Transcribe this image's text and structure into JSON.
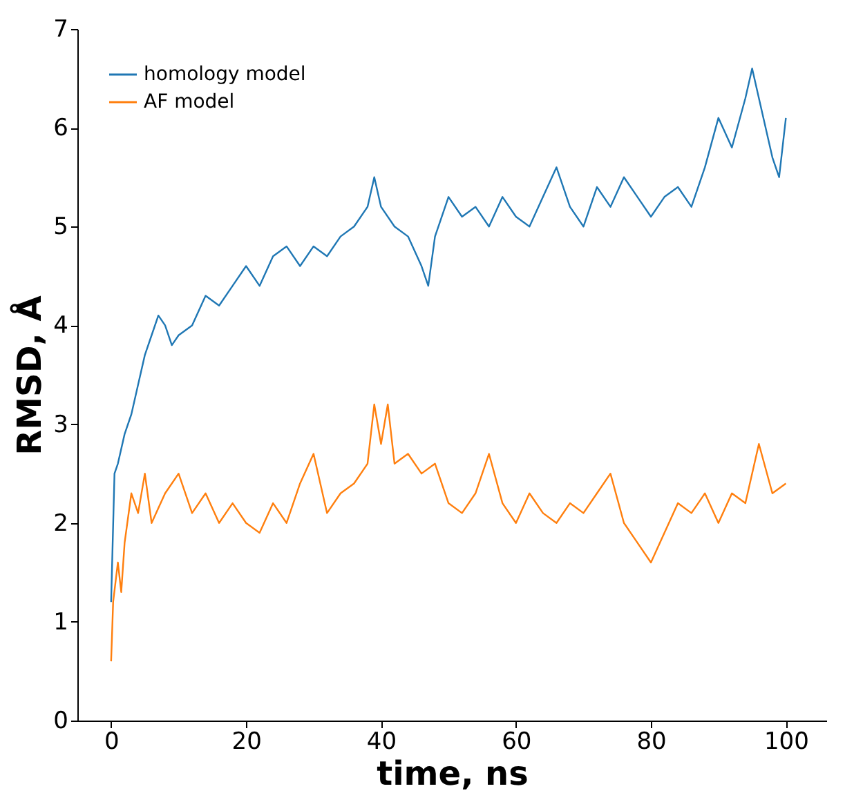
{
  "chart_data": {
    "type": "line",
    "xlabel": "time, ns",
    "ylabel": "RMSD, Å",
    "xlim": [
      -5,
      106
    ],
    "xticks": [
      0,
      20,
      40,
      60,
      80,
      100
    ],
    "ylim": [
      0,
      7
    ],
    "yticks": [
      0,
      1,
      2,
      3,
      4,
      5,
      6,
      7
    ],
    "grid": false,
    "legend": "top left",
    "line_style": "solid",
    "marker": "none",
    "series": [
      {
        "name": "homology model",
        "color": "#1f77b4",
        "x": [
          0,
          0.5,
          1,
          2,
          3,
          4,
          5,
          6,
          7,
          8,
          9,
          10,
          12,
          14,
          16,
          18,
          20,
          22,
          24,
          26,
          28,
          30,
          32,
          34,
          36,
          38,
          39,
          40,
          42,
          44,
          46,
          47,
          48,
          50,
          52,
          54,
          56,
          58,
          60,
          62,
          64,
          66,
          68,
          70,
          72,
          74,
          76,
          78,
          80,
          82,
          84,
          86,
          88,
          90,
          92,
          94,
          95,
          96,
          98,
          99,
          100
        ],
        "values": [
          1.2,
          2.5,
          2.6,
          2.9,
          3.1,
          3.4,
          3.7,
          3.9,
          4.1,
          4.0,
          3.8,
          3.9,
          4.0,
          4.3,
          4.2,
          4.4,
          4.6,
          4.4,
          4.7,
          4.8,
          4.6,
          4.8,
          4.7,
          4.9,
          5.0,
          5.2,
          5.5,
          5.2,
          5.0,
          4.9,
          4.6,
          4.4,
          4.9,
          5.3,
          5.1,
          5.2,
          5.0,
          5.3,
          5.1,
          5.0,
          5.3,
          5.6,
          5.2,
          5.0,
          5.4,
          5.2,
          5.5,
          5.3,
          5.1,
          5.3,
          5.4,
          5.2,
          5.6,
          6.1,
          5.8,
          6.3,
          6.6,
          6.3,
          5.7,
          5.5,
          6.1
        ]
      },
      {
        "name": "AF model",
        "color": "#ff7f0e",
        "x": [
          0,
          0.3,
          1,
          1.5,
          2,
          3,
          4,
          5,
          6,
          8,
          10,
          12,
          14,
          16,
          18,
          20,
          22,
          24,
          26,
          28,
          30,
          32,
          34,
          36,
          38,
          39,
          40,
          41,
          42,
          44,
          46,
          48,
          50,
          52,
          54,
          56,
          58,
          60,
          62,
          64,
          66,
          68,
          70,
          72,
          74,
          76,
          78,
          80,
          82,
          84,
          86,
          88,
          90,
          92,
          94,
          96,
          98,
          100
        ],
        "values": [
          0.6,
          1.2,
          1.6,
          1.3,
          1.8,
          2.3,
          2.1,
          2.5,
          2.0,
          2.3,
          2.5,
          2.1,
          2.3,
          2.0,
          2.2,
          2.0,
          1.9,
          2.2,
          2.0,
          2.4,
          2.7,
          2.1,
          2.3,
          2.4,
          2.6,
          3.2,
          2.8,
          3.2,
          2.6,
          2.7,
          2.5,
          2.6,
          2.2,
          2.1,
          2.3,
          2.7,
          2.2,
          2.0,
          2.3,
          2.1,
          2.0,
          2.2,
          2.1,
          2.3,
          2.5,
          2.0,
          1.8,
          1.6,
          1.9,
          2.2,
          2.1,
          2.3,
          2.0,
          2.3,
          2.2,
          2.8,
          2.3,
          2.4
        ]
      }
    ]
  }
}
